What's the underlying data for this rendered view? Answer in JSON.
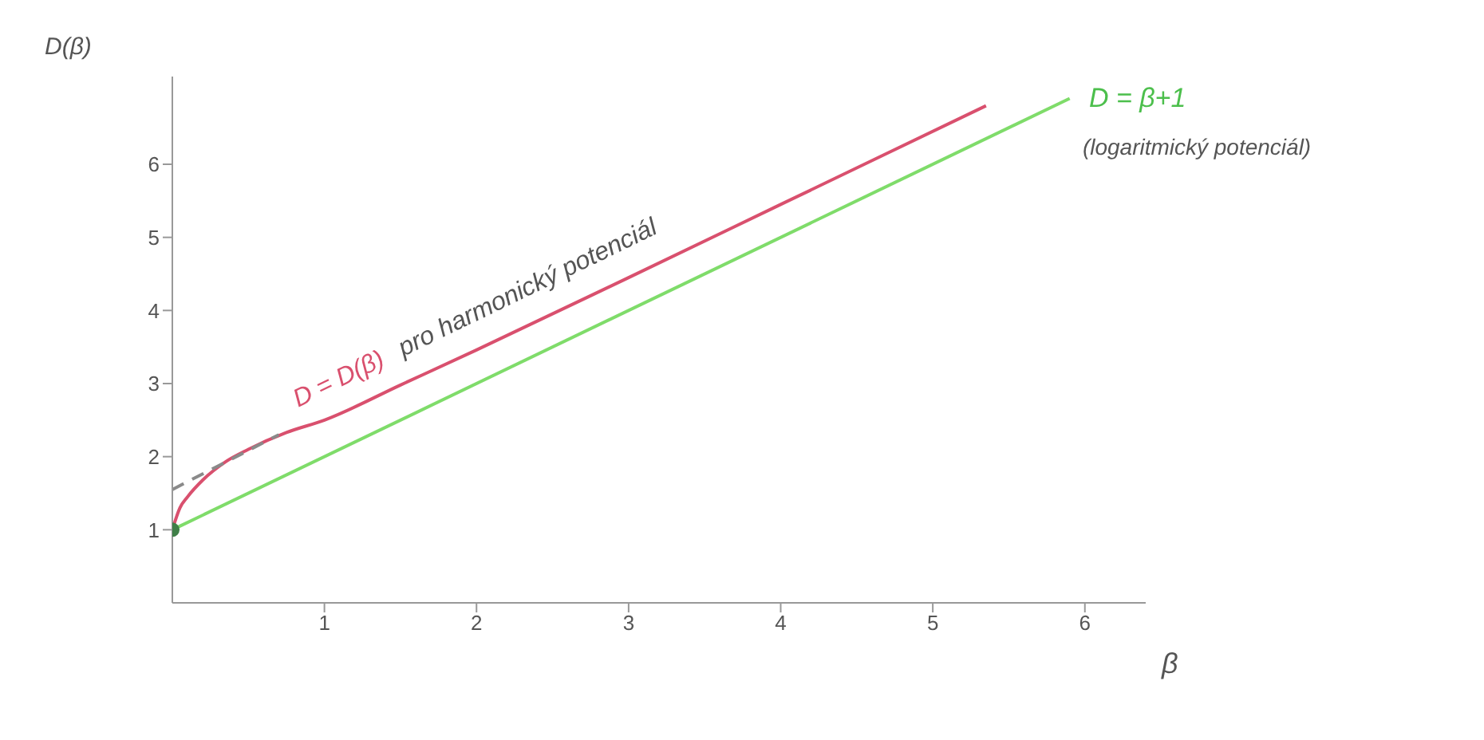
{
  "chart_data": {
    "type": "line",
    "xlabel": "β",
    "ylabel": "D(β)",
    "xlim": [
      0,
      6.4
    ],
    "ylim": [
      0,
      7.2
    ],
    "xticks": [
      1,
      2,
      3,
      4,
      5,
      6
    ],
    "yticks": [
      1,
      2,
      3,
      4,
      5,
      6
    ],
    "grid": false,
    "series": [
      {
        "name": "D = D(β)",
        "color": "#d9506e",
        "x": [
          0,
          0.05,
          0.1,
          0.2,
          0.35,
          0.5,
          0.75,
          1,
          1.5,
          2,
          3,
          4,
          5.35
        ],
        "values": [
          1,
          1.3,
          1.45,
          1.68,
          1.93,
          2.1,
          2.33,
          2.5,
          2.98,
          3.46,
          4.45,
          5.45,
          6.8
        ]
      },
      {
        "color": "#8a8a8a",
        "line_style": "dashed",
        "x": [
          0,
          0.7
        ],
        "values": [
          1.55,
          2.3
        ]
      },
      {
        "name": "D = β+1",
        "color": "#7fdc6a",
        "x": [
          0,
          5.9
        ],
        "values": [
          1,
          6.9
        ]
      },
      {
        "type": "scatter",
        "color": "#3f7f48",
        "x": [
          0
        ],
        "values": [
          1
        ]
      }
    ],
    "annotations": [
      "pro harmonický potenciál",
      "(logaritmický potenciál)"
    ]
  }
}
